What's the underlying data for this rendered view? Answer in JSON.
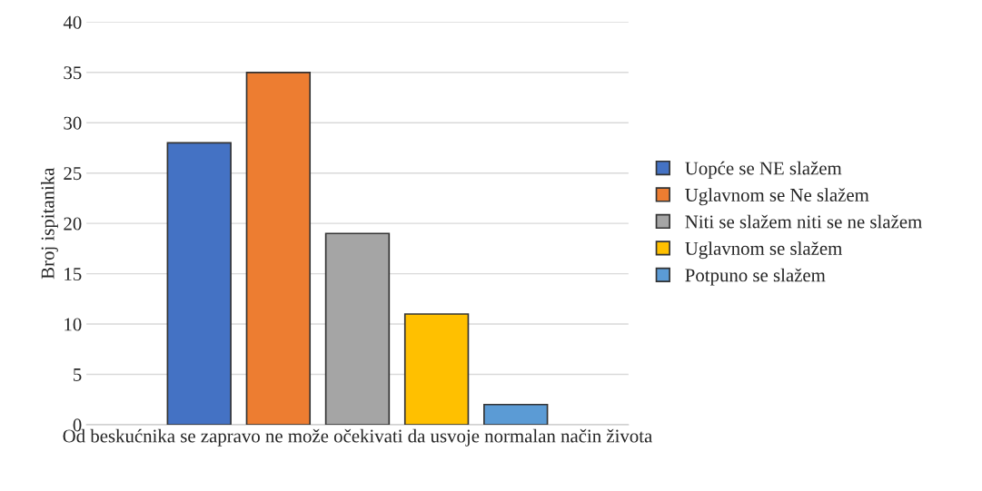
{
  "chart_data": {
    "type": "bar",
    "ylabel": "Broj ispitanika",
    "categories": [
      "Od beskućnika se zapravo ne može očekivati da usvoje normalan način života"
    ],
    "series": [
      {
        "name": "Uopće se NE slažem",
        "color": "#4472c4",
        "values": [
          28
        ]
      },
      {
        "name": "Uglavnom se Ne slažem",
        "color": "#ed7d31",
        "values": [
          35
        ]
      },
      {
        "name": "Niti se slažem niti se ne slažem",
        "color": "#a5a5a5",
        "values": [
          19
        ]
      },
      {
        "name": "Uglavnom se slažem",
        "color": "#ffc000",
        "values": [
          11
        ]
      },
      {
        "name": "Potpuno se slažem",
        "color": "#5b9bd5",
        "values": [
          2
        ]
      }
    ],
    "ylim": [
      0,
      40
    ],
    "yticks": [
      0,
      5,
      10,
      15,
      20,
      25,
      30,
      35,
      40
    ],
    "grid": "y",
    "legend": "right"
  }
}
